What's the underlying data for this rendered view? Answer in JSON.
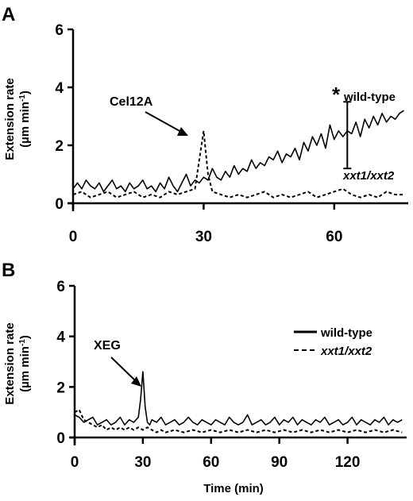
{
  "chart_data": [
    {
      "panel_label": "A",
      "type": "line",
      "ylabel": "Extension rate",
      "ylabel_unit": "(µm min",
      "ylabel_unit_sup": "-1",
      "unit_close": ")",
      "xlim": [
        0,
        77
      ],
      "ylim": [
        0,
        6
      ],
      "x_ticks": [
        0,
        30,
        60
      ],
      "y_ticks": [
        0,
        2,
        4,
        6
      ],
      "annotation": {
        "text": "Cel12A"
      },
      "significance": "*",
      "error_bar": {
        "x": 63,
        "center": 2.35,
        "low": 1.2,
        "high": 3.5
      },
      "series": [
        {
          "name": "wild-type",
          "style": "solid",
          "x": [
            0,
            1,
            2,
            3,
            4,
            5,
            6,
            7,
            8,
            9,
            10,
            11,
            12,
            13,
            14,
            15,
            16,
            17,
            18,
            19,
            20,
            21,
            22,
            23,
            24,
            25,
            26,
            27,
            28,
            29,
            30,
            31,
            32,
            33,
            34,
            35,
            36,
            37,
            38,
            39,
            40,
            41,
            42,
            43,
            44,
            45,
            46,
            47,
            48,
            49,
            50,
            51,
            52,
            53,
            54,
            55,
            56,
            57,
            58,
            59,
            60,
            61,
            62,
            63,
            64,
            65,
            66,
            67,
            68,
            69,
            70,
            71,
            72,
            73,
            74,
            75,
            76
          ],
          "y": [
            0.5,
            0.7,
            0.5,
            0.8,
            0.6,
            0.5,
            0.7,
            0.4,
            0.6,
            0.8,
            0.5,
            0.6,
            0.4,
            0.7,
            0.5,
            0.6,
            0.8,
            0.5,
            0.6,
            0.4,
            0.7,
            0.5,
            0.9,
            0.6,
            0.4,
            0.7,
            1.0,
            0.6,
            0.8,
            0.7,
            0.9,
            0.8,
            1.2,
            0.9,
            0.8,
            1.1,
            0.9,
            1.3,
            1.0,
            1.2,
            1.1,
            1.5,
            1.2,
            1.4,
            1.3,
            1.6,
            1.5,
            1.8,
            1.4,
            1.7,
            1.6,
            1.9,
            1.5,
            2.1,
            1.8,
            2.3,
            2.0,
            2.4,
            1.9,
            2.7,
            2.2,
            2.5,
            2.3,
            2.5,
            2.4,
            2.8,
            2.3,
            2.9,
            2.6,
            3.0,
            2.7,
            3.1,
            2.8,
            3.0,
            2.9,
            3.1,
            3.2
          ]
        },
        {
          "name": "xxt1/xxt2",
          "style": "dashed",
          "x": [
            0,
            2,
            4,
            6,
            8,
            10,
            12,
            14,
            16,
            18,
            20,
            22,
            24,
            26,
            28,
            29,
            30,
            31,
            32,
            34,
            36,
            38,
            40,
            42,
            44,
            46,
            48,
            50,
            52,
            54,
            56,
            58,
            60,
            62,
            64,
            66,
            68,
            70,
            72,
            74,
            76
          ],
          "y": [
            0.3,
            0.4,
            0.2,
            0.3,
            0.4,
            0.2,
            0.3,
            0.4,
            0.2,
            0.3,
            0.2,
            0.4,
            0.3,
            0.4,
            0.5,
            1.5,
            2.5,
            1.0,
            0.4,
            0.3,
            0.2,
            0.3,
            0.2,
            0.3,
            0.4,
            0.2,
            0.3,
            0.2,
            0.3,
            0.4,
            0.2,
            0.3,
            0.4,
            0.5,
            0.3,
            0.2,
            0.3,
            0.2,
            0.4,
            0.3,
            0.3
          ]
        }
      ]
    },
    {
      "panel_label": "B",
      "type": "line",
      "ylabel": "Extension rate",
      "ylabel_unit": "(µm min",
      "ylabel_unit_sup": "-1",
      "unit_close": ")",
      "xlabel": "Time (min)",
      "xlim": [
        0,
        146
      ],
      "ylim": [
        0,
        6
      ],
      "x_ticks": [
        0,
        30,
        60,
        90,
        120
      ],
      "y_ticks": [
        0,
        2,
        4,
        6
      ],
      "annotation": {
        "text": "XEG"
      },
      "legend_position": "right",
      "series": [
        {
          "name": "wild-type",
          "style": "solid",
          "x": [
            0,
            2,
            4,
            6,
            8,
            10,
            12,
            14,
            16,
            18,
            20,
            22,
            24,
            26,
            28,
            29,
            30,
            31,
            32,
            33,
            34,
            36,
            38,
            40,
            42,
            44,
            46,
            48,
            50,
            52,
            54,
            56,
            58,
            60,
            62,
            64,
            66,
            68,
            70,
            72,
            74,
            76,
            78,
            80,
            82,
            84,
            86,
            88,
            90,
            92,
            94,
            96,
            98,
            100,
            102,
            104,
            106,
            108,
            110,
            112,
            114,
            116,
            118,
            120,
            122,
            124,
            126,
            128,
            130,
            132,
            134,
            136,
            138,
            140,
            142,
            144
          ],
          "y": [
            0.9,
            0.8,
            0.6,
            0.7,
            0.8,
            0.5,
            0.6,
            0.7,
            0.5,
            0.6,
            0.8,
            0.5,
            0.7,
            0.6,
            0.8,
            1.5,
            2.6,
            1.2,
            0.6,
            0.5,
            0.7,
            0.6,
            0.8,
            0.5,
            0.6,
            0.7,
            0.5,
            0.6,
            0.8,
            0.6,
            0.5,
            0.7,
            0.6,
            0.5,
            0.7,
            0.6,
            0.5,
            0.8,
            0.6,
            0.5,
            0.6,
            0.9,
            0.5,
            0.6,
            0.7,
            0.5,
            0.6,
            0.8,
            0.5,
            0.7,
            0.6,
            0.8,
            0.5,
            0.7,
            0.6,
            0.5,
            0.7,
            0.6,
            0.8,
            0.5,
            0.6,
            0.7,
            0.5,
            0.6,
            0.8,
            0.5,
            0.7,
            0.6,
            0.5,
            0.7,
            0.6,
            0.8,
            0.5,
            0.7,
            0.6,
            0.7
          ]
        },
        {
          "name": "xxt1/xxt2",
          "style": "dashed",
          "x": [
            0,
            2,
            4,
            6,
            8,
            10,
            12,
            14,
            16,
            18,
            20,
            22,
            24,
            26,
            28,
            30,
            32,
            34,
            36,
            38,
            40,
            44,
            48,
            52,
            56,
            60,
            64,
            68,
            72,
            76,
            80,
            84,
            88,
            92,
            96,
            100,
            104,
            108,
            112,
            116,
            120,
            124,
            128,
            132,
            136,
            140,
            144
          ],
          "y": [
            1.0,
            1.1,
            0.7,
            0.6,
            0.5,
            0.4,
            0.5,
            0.3,
            0.4,
            0.3,
            0.4,
            0.3,
            0.4,
            0.3,
            0.4,
            0.3,
            0.4,
            0.3,
            0.2,
            0.3,
            0.2,
            0.3,
            0.2,
            0.3,
            0.2,
            0.3,
            0.2,
            0.3,
            0.2,
            0.3,
            0.2,
            0.3,
            0.2,
            0.3,
            0.2,
            0.3,
            0.2,
            0.3,
            0.2,
            0.3,
            0.2,
            0.3,
            0.2,
            0.3,
            0.2,
            0.3,
            0.2
          ]
        }
      ]
    }
  ]
}
